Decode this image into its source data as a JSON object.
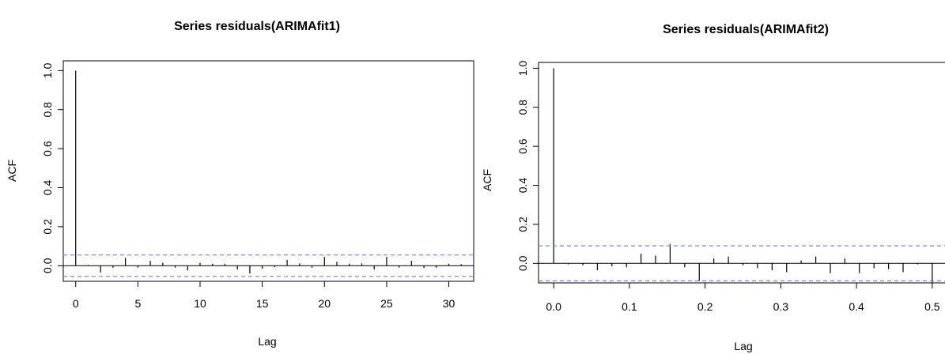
{
  "chart_data": [
    {
      "type": "acf",
      "title": "Series  residuals(ARIMAfit1)",
      "xlabel": "Lag",
      "ylabel": "ACF",
      "xlim": [
        -1,
        32
      ],
      "ylim": [
        -0.08,
        1.05
      ],
      "x_ticks": [
        0,
        5,
        10,
        15,
        20,
        25,
        30
      ],
      "x_tick_labels": [
        "0",
        "5",
        "10",
        "15",
        "20",
        "25",
        "30"
      ],
      "y_ticks": [
        0.0,
        0.2,
        0.4,
        0.6,
        0.8,
        1.0
      ],
      "y_tick_labels": [
        "0.0",
        "0.2",
        "0.4",
        "0.6",
        "0.8",
        "1.0"
      ],
      "ci": 0.055,
      "line_color": "#000000",
      "ci_color": "#7b7bff",
      "lags": [
        0,
        1,
        2,
        3,
        4,
        5,
        6,
        7,
        8,
        9,
        10,
        11,
        12,
        13,
        14,
        15,
        16,
        17,
        18,
        19,
        20,
        21,
        22,
        23,
        24,
        25,
        26,
        27,
        28,
        29,
        30,
        31
      ],
      "acf": [
        1.0,
        0.004,
        -0.035,
        -0.01,
        0.04,
        -0.01,
        0.025,
        0.015,
        -0.01,
        -0.025,
        0.015,
        0.01,
        0.01,
        -0.02,
        -0.04,
        -0.015,
        -0.008,
        0.03,
        0.012,
        -0.01,
        0.045,
        0.02,
        0.01,
        0.012,
        -0.02,
        0.045,
        -0.01,
        0.025,
        -0.012,
        -0.01,
        0.01,
        0.008
      ]
    },
    {
      "type": "acf",
      "title": "Series  residuals(ARIMAfit2)",
      "xlabel": "Lag",
      "ylabel": "ACF",
      "xlim": [
        -0.02,
        0.52
      ],
      "ylim": [
        -0.1,
        1.03
      ],
      "x_ticks": [
        0.0,
        0.1,
        0.2,
        0.3,
        0.4,
        0.5
      ],
      "x_tick_labels": [
        "0.0",
        "0.1",
        "0.2",
        "0.3",
        "0.4",
        "0.5"
      ],
      "y_ticks": [
        0.0,
        0.2,
        0.4,
        0.6,
        0.8,
        1.0
      ],
      "y_tick_labels": [
        "0.0",
        "0.2",
        "0.4",
        "0.6",
        "0.8",
        "1.0"
      ],
      "ci": 0.09,
      "line_color": "#000000",
      "ci_color": "#7b7bff",
      "lags": [
        0.0,
        0.0192,
        0.0385,
        0.0577,
        0.0769,
        0.0962,
        0.1154,
        0.1346,
        0.1538,
        0.1731,
        0.1923,
        0.2115,
        0.2308,
        0.25,
        0.2692,
        0.2885,
        0.3077,
        0.3269,
        0.3462,
        0.3654,
        0.3846,
        0.4038,
        0.4231,
        0.4423,
        0.4615,
        0.4808,
        0.5
      ],
      "acf": [
        1.0,
        -0.005,
        -0.01,
        -0.035,
        -0.015,
        -0.02,
        0.05,
        0.04,
        0.1,
        -0.02,
        -0.09,
        0.025,
        0.035,
        -0.01,
        -0.025,
        -0.035,
        -0.045,
        0.015,
        0.035,
        -0.05,
        0.025,
        -0.05,
        -0.025,
        -0.03,
        -0.045,
        -0.005,
        -0.1
      ]
    }
  ]
}
